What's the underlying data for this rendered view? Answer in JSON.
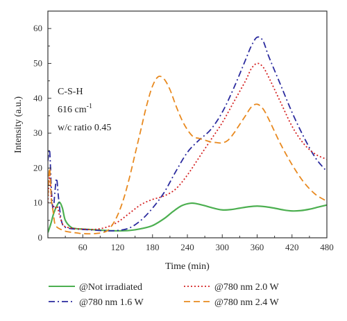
{
  "chart_data": {
    "type": "line",
    "title": "",
    "xlabel": "Time (min)",
    "ylabel": "Intensity (a.u.)",
    "xlim": [
      0,
      480
    ],
    "ylim": [
      0,
      65
    ],
    "xticks": [
      60,
      120,
      180,
      240,
      300,
      360,
      420,
      480
    ],
    "yticks": [
      0,
      10,
      20,
      30,
      40,
      50,
      60
    ],
    "grid": false,
    "legend_position": "bottom",
    "annotation": {
      "line1": "C-S-H",
      "line2_base": "616 cm",
      "line2_sup": "-1",
      "line3": "w/c ratio 0.45"
    },
    "series": [
      {
        "name": "@Not irradiated",
        "color": "#4caf50",
        "style": "solid",
        "x": [
          0,
          5,
          10,
          15,
          20,
          25,
          30,
          40,
          50,
          60,
          80,
          100,
          120,
          140,
          160,
          180,
          200,
          215,
          230,
          245,
          255,
          270,
          285,
          300,
          315,
          330,
          345,
          360,
          375,
          390,
          405,
          420,
          435,
          450,
          465,
          480
        ],
        "y": [
          1.5,
          4,
          7,
          9,
          10.2,
          8.5,
          5,
          3,
          2.6,
          2.5,
          2.3,
          2.1,
          2,
          2.1,
          2.6,
          3.5,
          5.5,
          7.5,
          9.2,
          9.9,
          9.8,
          9.2,
          8.5,
          8,
          8.1,
          8.5,
          8.9,
          9.1,
          8.9,
          8.5,
          8,
          7.7,
          7.8,
          8.2,
          8.8,
          9.4
        ]
      },
      {
        "name": "@780 nm 1.6 W",
        "color": "#2a2a9e",
        "style": "dashdot",
        "x": [
          0,
          3,
          6,
          9,
          12,
          15,
          18,
          22,
          26,
          30,
          40,
          50,
          60,
          80,
          100,
          120,
          140,
          160,
          180,
          200,
          220,
          240,
          260,
          280,
          300,
          320,
          340,
          350,
          360,
          370,
          380,
          400,
          420,
          440,
          460,
          480
        ],
        "y": [
          22,
          25,
          14,
          8,
          13,
          17,
          12,
          6,
          3.5,
          3,
          2.6,
          2.5,
          2.4,
          2.2,
          2,
          2.1,
          2.8,
          5,
          8.5,
          13,
          19,
          24.5,
          28,
          31,
          36,
          43,
          51,
          55,
          57.5,
          56.5,
          52,
          44,
          36,
          29,
          23,
          19
        ]
      },
      {
        "name": "@780 nm 2.0 W",
        "color": "#d42020",
        "style": "dotted",
        "x": [
          0,
          3,
          6,
          9,
          12,
          16,
          20,
          25,
          30,
          40,
          50,
          60,
          80,
          100,
          120,
          140,
          160,
          180,
          200,
          220,
          240,
          260,
          280,
          300,
          320,
          340,
          350,
          360,
          370,
          380,
          400,
          420,
          440,
          460,
          480
        ],
        "y": [
          10,
          18,
          11,
          9,
          8.5,
          9,
          6.5,
          4,
          3.2,
          2.8,
          2.6,
          2.5,
          2.4,
          3,
          4.5,
          7,
          9.5,
          11,
          12,
          14,
          18,
          23,
          28,
          33,
          39,
          45,
          48.5,
          50,
          49,
          46,
          39,
          32,
          27,
          24,
          22.5
        ]
      },
      {
        "name": "@780 nm 2.4 W",
        "color": "#e8891f",
        "style": "dashed",
        "x": [
          0,
          3,
          6,
          9,
          12,
          16,
          20,
          25,
          30,
          40,
          50,
          60,
          80,
          100,
          110,
          120,
          130,
          140,
          150,
          160,
          170,
          180,
          190,
          200,
          210,
          220,
          230,
          240,
          250,
          260,
          270,
          280,
          290,
          300,
          310,
          320,
          330,
          340,
          350,
          360,
          370,
          380,
          400,
          420,
          440,
          460,
          480
        ],
        "y": [
          12,
          20,
          11,
          7.5,
          4,
          3,
          2.6,
          2.2,
          1.9,
          1.6,
          1.4,
          1.2,
          1.2,
          1.8,
          3.5,
          6.5,
          11,
          17,
          24,
          31,
          38,
          43.5,
          46.2,
          45.5,
          42.5,
          38,
          34,
          31,
          29,
          28.5,
          28,
          27.5,
          27.3,
          27.2,
          28,
          30,
          32.5,
          35,
          37.5,
          38.3,
          37,
          34,
          27,
          21,
          16,
          12.5,
          10.5
        ]
      }
    ]
  }
}
